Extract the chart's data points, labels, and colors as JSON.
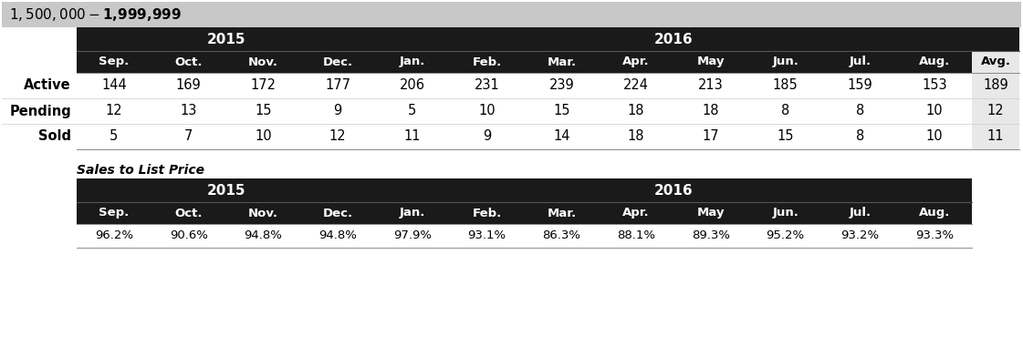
{
  "title": "$1,500,000 - $1,999,999",
  "title_bg": "#c8c8c8",
  "header_bg": "#1a1a1a",
  "header_text_color": "#ffffff",
  "avg_col_bg": "#e8e8e8",
  "body_bg": "#ffffff",
  "row_label_color": "#000000",
  "data_text_color": "#000000",
  "col_headers": [
    "Sep.",
    "Oct.",
    "Nov.",
    "Dec.",
    "Jan.",
    "Feb.",
    "Mar.",
    "Apr.",
    "May",
    "Jun.",
    "Jul.",
    "Aug.",
    "Avg."
  ],
  "row_labels": [
    "Active",
    "Pending",
    "Sold"
  ],
  "active_data": [
    "144",
    "169",
    "172",
    "177",
    "206",
    "231",
    "239",
    "224",
    "213",
    "185",
    "159",
    "153",
    "189"
  ],
  "pending_data": [
    "12",
    "13",
    "15",
    "9",
    "5",
    "10",
    "15",
    "18",
    "18",
    "8",
    "8",
    "10",
    "12"
  ],
  "sold_data": [
    "5",
    "7",
    "10",
    "12",
    "11",
    "9",
    "14",
    "18",
    "17",
    "15",
    "8",
    "10",
    "11"
  ],
  "sales_label": "Sales to List Price",
  "sales_col_headers": [
    "Sep.",
    "Oct.",
    "Nov.",
    "Dec.",
    "Jan.",
    "Feb.",
    "Mar.",
    "Apr.",
    "May",
    "Jun.",
    "Jul.",
    "Aug."
  ],
  "sales_data": [
    "96.2%",
    "90.6%",
    "94.8%",
    "94.8%",
    "97.9%",
    "93.1%",
    "86.3%",
    "88.1%",
    "89.3%",
    "95.2%",
    "93.2%",
    "93.3%"
  ]
}
